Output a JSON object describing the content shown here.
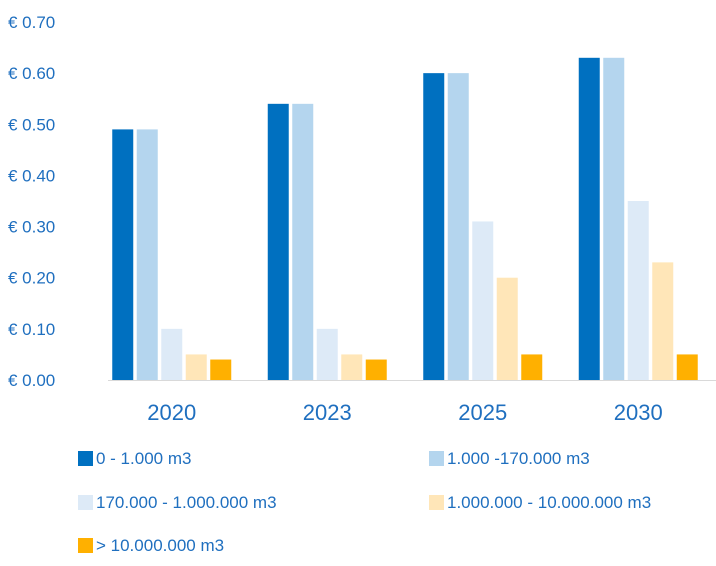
{
  "chart_data": {
    "type": "bar",
    "title": "",
    "xlabel": "",
    "ylabel": "",
    "ylim": [
      0,
      0.7
    ],
    "yticks": [
      {
        "value": 0.0,
        "label": "€ 0.00"
      },
      {
        "value": 0.1,
        "label": "€ 0.10"
      },
      {
        "value": 0.2,
        "label": "€ 0.20"
      },
      {
        "value": 0.3,
        "label": "€ 0.30"
      },
      {
        "value": 0.4,
        "label": "€ 0.40"
      },
      {
        "value": 0.5,
        "label": "€ 0.50"
      },
      {
        "value": 0.6,
        "label": "€ 0.60"
      },
      {
        "value": 0.7,
        "label": "€ 0.70"
      }
    ],
    "grid": false,
    "legend_position": "bottom",
    "categories": [
      "2020",
      "2023",
      "2025",
      "2030"
    ],
    "series": [
      {
        "name": "0 - 1.000 m3",
        "color": "#0070c0",
        "values": [
          0.49,
          0.54,
          0.6,
          0.63
        ]
      },
      {
        "name": "1.000 -170.000 m3",
        "color": "#b4d5ee",
        "values": [
          0.49,
          0.54,
          0.6,
          0.63
        ]
      },
      {
        "name": "170.000 - 1.000.000 m3",
        "color": "#ddeaf7",
        "values": [
          0.1,
          0.1,
          0.31,
          0.35
        ]
      },
      {
        "name": "1.000.000 - 10.000.000 m3",
        "color": "#ffe6b8",
        "values": [
          0.05,
          0.05,
          0.2,
          0.23
        ]
      },
      {
        "name": "> 10.000.000 m3",
        "color": "#ffb000",
        "values": [
          0.04,
          0.04,
          0.05,
          0.05
        ]
      }
    ]
  }
}
